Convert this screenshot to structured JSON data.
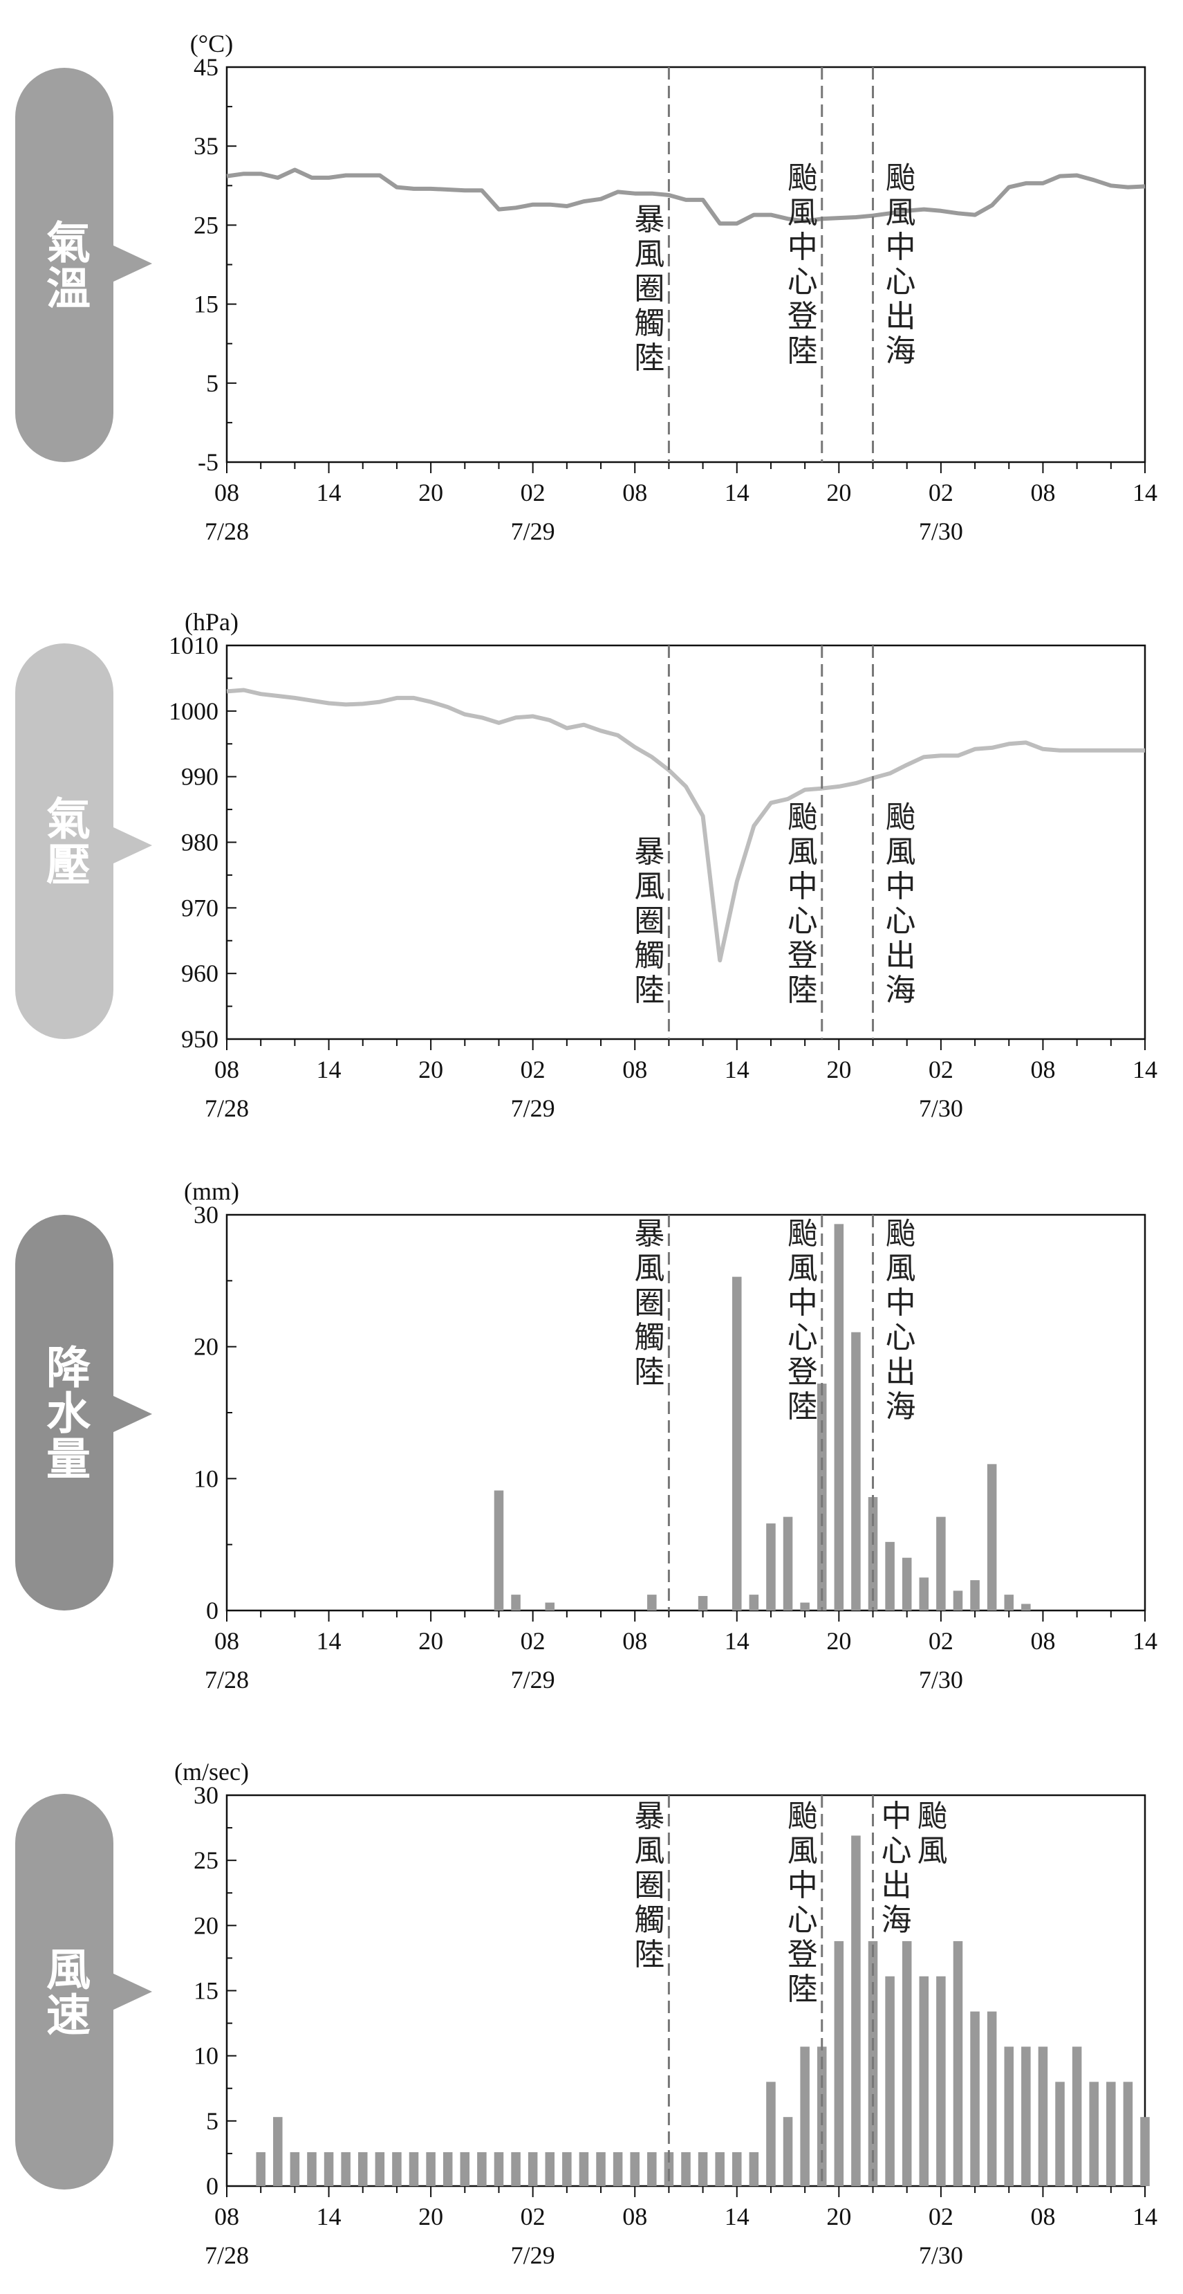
{
  "x_ticks": [
    "08",
    "14",
    "20",
    "02",
    "08",
    "14",
    "20",
    "02",
    "08",
    "14"
  ],
  "date_labels": [
    "7/28",
    "7/29",
    "7/30"
  ],
  "annotations": {
    "storm_circle_landfall": "暴風圈觸陸",
    "center_landfall": "颱風中心登陸",
    "center_exit": "颱風中心出海",
    "center_exit_wind_col1": "颱風",
    "center_exit_wind_col2": "中心出海"
  },
  "colors": {
    "temperature_badge": "#a0a0a0",
    "temperature_line": "#9a9a9a",
    "pressure_badge": "#c4c4c4",
    "pressure_line": "#bdbdbd",
    "rain_badge": "#8f8f8f",
    "rain_bar": "#999999",
    "wind_badge": "#9d9d9d",
    "wind_bar": "#999999",
    "axis": "#111111",
    "event_line": "#777777"
  },
  "chart_data": [
    {
      "type": "line",
      "badge": "氣溫",
      "unit": "(°C)",
      "ylim": [
        -5,
        45
      ],
      "y_ticks": [
        "45",
        "35",
        "25",
        "15",
        "5",
        "-5"
      ],
      "x_hours": [
        0,
        1,
        2,
        3,
        4,
        5,
        6,
        7,
        8,
        9,
        10,
        11,
        12,
        13,
        14,
        15,
        16,
        17,
        18,
        19,
        20,
        21,
        22,
        23,
        24,
        25,
        26,
        27,
        28,
        29,
        30,
        31,
        32,
        33,
        34,
        35,
        36,
        37,
        38,
        39,
        40,
        41,
        42,
        43,
        44,
        45,
        46,
        47,
        48,
        49,
        50,
        51,
        52,
        53,
        54
      ],
      "values": [
        31.2,
        31.5,
        31.5,
        31.0,
        32.0,
        31.0,
        31.0,
        31.3,
        31.3,
        31.3,
        29.8,
        29.6,
        29.6,
        29.5,
        29.4,
        29.4,
        27.0,
        27.2,
        27.6,
        27.6,
        27.4,
        28.0,
        28.3,
        29.2,
        29.0,
        29.0,
        28.8,
        28.2,
        28.2,
        25.2,
        25.2,
        26.3,
        26.3,
        25.8,
        25.5,
        25.8,
        25.9,
        26.0,
        26.2,
        26.5,
        26.8,
        27.0,
        26.8,
        26.5,
        26.3,
        27.5,
        29.8,
        30.3,
        30.3,
        31.2,
        31.3,
        30.7,
        30.0,
        29.8,
        29.9
      ]
    },
    {
      "type": "line",
      "badge": "氣壓",
      "unit": "(hPa)",
      "ylim": [
        950,
        1010
      ],
      "y_ticks": [
        "1010",
        "1000",
        "990",
        "980",
        "970",
        "960",
        "950"
      ],
      "x_hours": [
        0,
        1,
        2,
        3,
        4,
        5,
        6,
        7,
        8,
        9,
        10,
        11,
        12,
        13,
        14,
        15,
        16,
        17,
        18,
        19,
        20,
        21,
        22,
        23,
        24,
        25,
        26,
        27,
        28,
        29,
        30,
        31,
        32,
        33,
        34,
        35,
        36,
        37,
        38,
        39,
        40,
        41,
        42,
        43,
        44,
        45,
        46,
        47,
        48,
        49,
        50,
        51,
        52,
        53,
        54
      ],
      "values": [
        1003.0,
        1003.2,
        1002.6,
        1002.3,
        1002.0,
        1001.6,
        1001.2,
        1001.0,
        1001.1,
        1001.4,
        1002.0,
        1002.0,
        1001.4,
        1000.6,
        999.5,
        999.0,
        998.2,
        999.0,
        999.2,
        998.6,
        997.4,
        997.9,
        997.0,
        996.3,
        994.5,
        993.0,
        991.0,
        988.5,
        984.0,
        962.0,
        974.0,
        982.5,
        986.0,
        986.6,
        988.0,
        988.2,
        988.5,
        989.0,
        989.8,
        990.5,
        991.8,
        993.0,
        993.2,
        993.2,
        994.2,
        994.4,
        995.0,
        995.2,
        994.2,
        994.0,
        994.0,
        994.0,
        994.0,
        994.0,
        994.0
      ]
    },
    {
      "type": "bar",
      "badge": "降水量",
      "unit": "(mm)",
      "ylim": [
        0,
        30
      ],
      "y_ticks": [
        "30",
        "20",
        "10",
        "0"
      ],
      "x_hours": [
        16,
        17,
        19,
        25,
        28,
        30,
        31,
        32,
        33,
        34,
        35,
        36,
        37,
        38,
        39,
        40,
        41,
        42,
        43,
        44,
        45,
        46,
        47,
        48
      ],
      "values": [
        9.1,
        1.2,
        0.6,
        1.2,
        1.1,
        25.3,
        1.2,
        6.6,
        7.1,
        0.6,
        17.2,
        29.3,
        21.1,
        8.6,
        5.2,
        4.0,
        2.5,
        7.1,
        1.5,
        2.3,
        11.1,
        1.2,
        0.5,
        0
      ]
    },
    {
      "type": "bar",
      "badge": "風速",
      "unit": "(m/sec)",
      "ylim": [
        0,
        30
      ],
      "y_ticks": [
        "30",
        "25",
        "20",
        "15",
        "10",
        "5",
        "0"
      ],
      "x_hours": [
        2,
        3,
        4,
        5,
        6,
        7,
        8,
        9,
        10,
        11,
        12,
        13,
        14,
        15,
        16,
        17,
        18,
        19,
        20,
        21,
        22,
        23,
        24,
        25,
        26,
        27,
        28,
        29,
        30,
        31,
        32,
        33,
        34,
        35,
        36,
        37,
        38,
        39,
        40,
        41,
        42,
        43,
        44,
        45,
        46,
        47,
        48,
        49,
        50,
        51,
        52,
        53,
        54
      ],
      "values": [
        2.6,
        5.3,
        2.6,
        2.6,
        2.6,
        2.6,
        2.6,
        2.6,
        2.6,
        2.6,
        2.6,
        2.6,
        2.6,
        2.6,
        2.6,
        2.6,
        2.6,
        2.6,
        2.6,
        2.6,
        2.6,
        2.6,
        2.6,
        2.6,
        2.6,
        2.6,
        2.6,
        2.6,
        2.6,
        2.6,
        8.0,
        5.3,
        10.7,
        10.7,
        18.8,
        26.9,
        18.8,
        16.1,
        18.8,
        16.1,
        16.1,
        18.8,
        13.4,
        13.4,
        10.7,
        10.7,
        10.7,
        8.0,
        10.7,
        8.0,
        8.0,
        8.0,
        5.3
      ]
    }
  ]
}
